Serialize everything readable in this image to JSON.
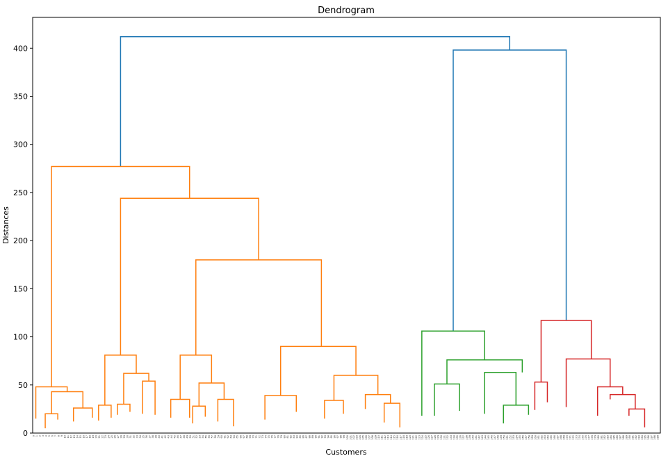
{
  "chart_data": {
    "type": "dendrogram",
    "title": "Dendrogram",
    "xlabel": "Customers",
    "ylabel": "Distances",
    "ylim": [
      0,
      432
    ],
    "xlim": [
      0,
      2000
    ],
    "yticks": [
      0,
      50,
      100,
      150,
      200,
      250,
      300,
      350,
      400
    ],
    "leaf_count": 200,
    "leaf_label_note": "200 customer index labels (illegible at this size)",
    "colors": {
      "orange": "#ff7f0e",
      "green": "#2ca02c",
      "red": "#d62728",
      "blue": "#1f77b4"
    },
    "links": [
      {
        "color": "blue",
        "x": [
          280,
          280,
          1520,
          1520
        ],
        "y": [
          277,
          412,
          412,
          398
        ]
      },
      {
        "color": "blue",
        "x": [
          1340,
          1340,
          1700,
          1700
        ],
        "y": [
          106,
          398,
          398,
          117
        ]
      },
      {
        "color": "orange",
        "x": [
          60,
          60,
          500,
          500
        ],
        "y": [
          48,
          277,
          277,
          244
        ]
      },
      {
        "color": "orange",
        "x": [
          280,
          280,
          720,
          720
        ],
        "y": [
          81,
          244,
          244,
          180
        ]
      },
      {
        "color": "orange",
        "x": [
          520,
          520,
          920,
          920
        ],
        "y": [
          81,
          180,
          180,
          90
        ]
      },
      {
        "color": "orange",
        "x": [
          10,
          10,
          110,
          110
        ],
        "y": [
          15,
          48,
          48,
          43
        ]
      },
      {
        "color": "orange",
        "x": [
          60,
          60,
          160,
          160
        ],
        "y": [
          20,
          43,
          43,
          26
        ]
      },
      {
        "color": "orange",
        "x": [
          40,
          40,
          80,
          80
        ],
        "y": [
          5,
          20,
          20,
          14
        ]
      },
      {
        "color": "orange",
        "x": [
          130,
          130,
          190,
          190
        ],
        "y": [
          12,
          26,
          26,
          16
        ]
      },
      {
        "color": "orange",
        "x": [
          230,
          230,
          330,
          330
        ],
        "y": [
          29,
          81,
          81,
          62
        ]
      },
      {
        "color": "orange",
        "x": [
          290,
          290,
          370,
          370
        ],
        "y": [
          30,
          62,
          62,
          54
        ]
      },
      {
        "color": "orange",
        "x": [
          210,
          210,
          250,
          250
        ],
        "y": [
          13,
          29,
          29,
          16
        ]
      },
      {
        "color": "orange",
        "x": [
          270,
          270,
          310,
          310
        ],
        "y": [
          19,
          30,
          30,
          22
        ]
      },
      {
        "color": "orange",
        "x": [
          350,
          350,
          390,
          390
        ],
        "y": [
          20,
          54,
          54,
          19
        ]
      },
      {
        "color": "orange",
        "x": [
          470,
          470,
          570,
          570
        ],
        "y": [
          35,
          81,
          81,
          52
        ]
      },
      {
        "color": "orange",
        "x": [
          440,
          440,
          500,
          500
        ],
        "y": [
          16,
          35,
          35,
          16
        ]
      },
      {
        "color": "orange",
        "x": [
          530,
          530,
          610,
          610
        ],
        "y": [
          28,
          52,
          52,
          35
        ]
      },
      {
        "color": "orange",
        "x": [
          590,
          590,
          640,
          640
        ],
        "y": [
          12,
          35,
          35,
          7
        ]
      },
      {
        "color": "orange",
        "x": [
          510,
          510,
          550,
          550
        ],
        "y": [
          10,
          28,
          28,
          17
        ]
      },
      {
        "color": "orange",
        "x": [
          790,
          790,
          1030,
          1030
        ],
        "y": [
          39,
          90,
          90,
          60
        ]
      },
      {
        "color": "orange",
        "x": [
          740,
          740,
          840,
          840
        ],
        "y": [
          14,
          39,
          39,
          22
        ]
      },
      {
        "color": "orange",
        "x": [
          960,
          960,
          1100,
          1100
        ],
        "y": [
          34,
          60,
          60,
          40
        ]
      },
      {
        "color": "orange",
        "x": [
          930,
          930,
          990,
          990
        ],
        "y": [
          15,
          34,
          34,
          20
        ]
      },
      {
        "color": "orange",
        "x": [
          1060,
          1060,
          1140,
          1140
        ],
        "y": [
          25,
          40,
          40,
          31
        ]
      },
      {
        "color": "orange",
        "x": [
          1120,
          1120,
          1170,
          1170
        ],
        "y": [
          11,
          31,
          31,
          6
        ]
      },
      {
        "color": "green",
        "x": [
          1240,
          1240,
          1440,
          1440
        ],
        "y": [
          18,
          106,
          106,
          76
        ]
      },
      {
        "color": "green",
        "x": [
          1320,
          1320,
          1560,
          1560
        ],
        "y": [
          51,
          76,
          76,
          63
        ]
      },
      {
        "color": "green",
        "x": [
          1280,
          1280,
          1360,
          1360
        ],
        "y": [
          18,
          51,
          51,
          23
        ]
      },
      {
        "color": "green",
        "x": [
          1440,
          1440,
          1540,
          1540
        ],
        "y": [
          20,
          63,
          63,
          29
        ]
      },
      {
        "color": "green",
        "x": [
          1500,
          1500,
          1580,
          1580
        ],
        "y": [
          10,
          29,
          29,
          19
        ]
      },
      {
        "color": "red",
        "x": [
          1620,
          1620,
          1780,
          1780
        ],
        "y": [
          53,
          117,
          117,
          77
        ]
      },
      {
        "color": "red",
        "x": [
          1600,
          1600,
          1640,
          1640
        ],
        "y": [
          24,
          53,
          53,
          32
        ]
      },
      {
        "color": "red",
        "x": [
          1700,
          1700,
          1840,
          1840
        ],
        "y": [
          27,
          77,
          77,
          48
        ]
      },
      {
        "color": "red",
        "x": [
          1800,
          1800,
          1880,
          1880
        ],
        "y": [
          18,
          48,
          48,
          40
        ]
      },
      {
        "color": "red",
        "x": [
          1840,
          1840,
          1920,
          1920
        ],
        "y": [
          35,
          40,
          40,
          25
        ]
      },
      {
        "color": "red",
        "x": [
          1900,
          1900,
          1950,
          1950
        ],
        "y": [
          18,
          25,
          25,
          6
        ]
      }
    ]
  }
}
